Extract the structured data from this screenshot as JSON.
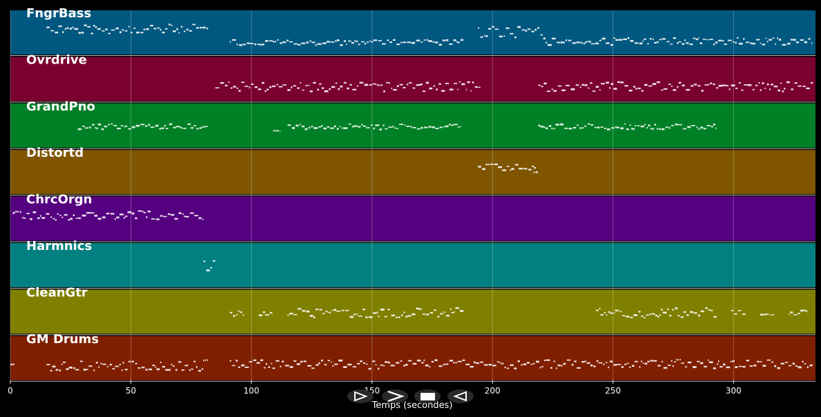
{
  "chart_data": {
    "type": "piano-roll",
    "xlabel": "Temps (secondes)",
    "xlim": [
      0,
      334
    ],
    "xticks": [
      0,
      50,
      100,
      150,
      200,
      250,
      300
    ],
    "grid": true,
    "tracks": [
      {
        "name": "FngrBass",
        "color": "#00577f",
        "segments": [
          [
            15,
            82,
            0.3,
            0.55
          ],
          [
            91,
            188,
            0.65,
            0.8
          ],
          [
            194,
            222,
            0.35,
            0.65
          ],
          [
            222,
            333,
            0.6,
            0.8
          ]
        ]
      },
      {
        "name": "Ovrdrive",
        "color": "#7a0030",
        "segments": [
          [
            85,
            195,
            0.55,
            0.8
          ],
          [
            219,
            333,
            0.55,
            0.8
          ]
        ]
      },
      {
        "name": "GrandPno",
        "color": "#008026",
        "segments": [
          [
            28,
            82,
            0.45,
            0.6
          ],
          [
            109,
            112,
            0.6,
            0.62
          ],
          [
            115,
            187,
            0.45,
            0.6
          ],
          [
            219,
            293,
            0.45,
            0.6
          ]
        ]
      },
      {
        "name": "Distortd",
        "color": "#7f5500",
        "segments": [
          [
            194,
            218,
            0.3,
            0.48
          ],
          [
            217,
            219,
            0.48,
            0.52
          ]
        ]
      },
      {
        "name": "ChrcOrgn",
        "color": "#550080",
        "segments": [
          [
            1,
            80,
            0.3,
            0.55
          ]
        ]
      },
      {
        "name": "Harmnics",
        "color": "#008080",
        "segments": [
          [
            80,
            85,
            0.35,
            0.65
          ]
        ]
      },
      {
        "name": "CleanGtr",
        "color": "#7f7f00",
        "segments": [
          [
            91,
            97,
            0.45,
            0.65
          ],
          [
            103,
            109,
            0.45,
            0.6
          ],
          [
            115,
            188,
            0.4,
            0.65
          ],
          [
            243,
            293,
            0.4,
            0.65
          ],
          [
            299,
            305,
            0.45,
            0.6
          ],
          [
            311,
            317,
            0.45,
            0.6
          ],
          [
            323,
            331,
            0.45,
            0.6
          ]
        ]
      },
      {
        "name": "GM Drums",
        "color": "#7f1f00",
        "segments": [
          [
            0,
            2,
            0.62,
            0.67
          ],
          [
            15,
            80,
            0.55,
            0.8
          ],
          [
            80,
            82,
            0.52,
            0.56
          ],
          [
            91,
            333,
            0.52,
            0.75
          ]
        ]
      }
    ]
  },
  "controls": [
    {
      "name": "play-button",
      "glyph": "play-icon"
    },
    {
      "name": "fast-forward-button",
      "glyph": "chevron-right-icon"
    },
    {
      "name": "stop-button",
      "glyph": "stop-icon"
    },
    {
      "name": "rewind-button",
      "glyph": "reverse-play-icon"
    }
  ]
}
